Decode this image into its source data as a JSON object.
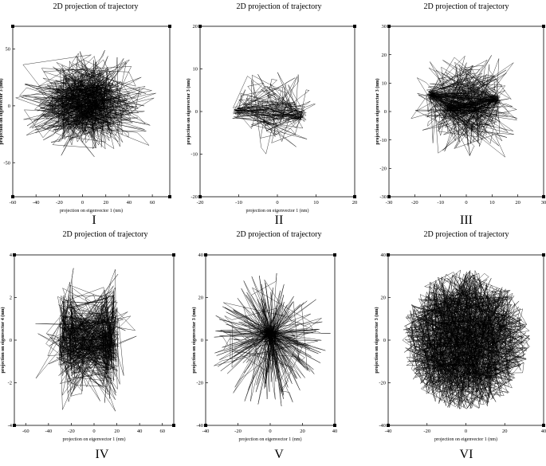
{
  "chart_data": [
    {
      "panel": "I",
      "type": "line",
      "title": "2D projection of trajectory",
      "xlabel": "projection on eigenvector 1 (nm)",
      "ylabel": "projection on eigenvector 3 (nm)",
      "xlim": [
        -60,
        75
      ],
      "ylim": [
        -80,
        70
      ],
      "xticks": [
        -60,
        -40,
        -20,
        0,
        20,
        40,
        60
      ],
      "yticks": [
        -50,
        0,
        50
      ],
      "pattern": "dense-radial",
      "n_points": 900,
      "spread": [
        70,
        55
      ],
      "center": [
        5,
        3
      ]
    },
    {
      "panel": "II",
      "type": "line",
      "title": "2D projection of trajectory",
      "xlabel": "projection on eigenvector 1 (nm)",
      "ylabel": "projection on eigenvector 3 (nm)",
      "xlim": [
        -20,
        20
      ],
      "ylim": [
        -20,
        20
      ],
      "xticks": [
        -20,
        -10,
        0,
        10,
        20
      ],
      "yticks": [
        -20,
        -10,
        0,
        10,
        20
      ],
      "pattern": "clusters",
      "n_points": 260,
      "spread": [
        14,
        12
      ],
      "center": [
        0,
        0
      ],
      "clusters": [
        [
          -11,
          0
        ],
        [
          6,
          -1
        ]
      ]
    },
    {
      "panel": "III",
      "type": "line",
      "title": "2D projection of trajectory",
      "xlabel": "",
      "ylabel": "projection on eigenvector 3 (nm)",
      "xlim": [
        -30,
        30
      ],
      "ylim": [
        -30,
        30
      ],
      "xticks": [
        -30,
        -20,
        -10,
        0,
        10,
        20,
        30
      ],
      "yticks": [
        -30,
        -20,
        -10,
        0,
        10,
        20,
        30
      ],
      "pattern": "clusters",
      "n_points": 700,
      "spread": [
        26,
        22
      ],
      "center": [
        0,
        2
      ],
      "clusters": [
        [
          -7,
          1
        ],
        [
          4,
          1
        ],
        [
          -14,
          6
        ],
        [
          12,
          4
        ]
      ]
    },
    {
      "panel": "IV",
      "type": "line",
      "title": "2D projection of trajectory",
      "xlabel": "projection on eigenvector 1 (nm)",
      "ylabel": "projection on eigenvector 4 (nm)",
      "xlim": [
        -70,
        70
      ],
      "ylim": [
        -4,
        4
      ],
      "xticks": [
        -60,
        -40,
        -20,
        0,
        20,
        40,
        60
      ],
      "yticks": [
        -4,
        -2,
        0,
        2,
        4
      ],
      "pattern": "vertical-bands",
      "n_points": 800,
      "spread": [
        55,
        3.8
      ],
      "center": [
        -5,
        0
      ],
      "bands": [
        -28,
        -20,
        10,
        18
      ]
    },
    {
      "panel": "V",
      "type": "line",
      "title": "2D projection of trajectory",
      "xlabel": "projection on eigenvector 1 (nm)",
      "ylabel": "projection on eigenvector 3 (nm)",
      "xlim": [
        -40,
        40
      ],
      "ylim": [
        -40,
        40
      ],
      "xticks": [
        -40,
        -20,
        0,
        20,
        40
      ],
      "yticks": [
        -40,
        -20,
        0,
        20,
        40
      ],
      "pattern": "starburst",
      "n_points": 500,
      "spread": [
        38,
        32
      ],
      "center": [
        0,
        0
      ]
    },
    {
      "panel": "VI",
      "type": "line",
      "title": "2D projection of trajectory",
      "xlabel": "projection on eigenvector 1 (nm)",
      "ylabel": "projection on eigenvector 3 (nm)",
      "xlim": [
        -40,
        40
      ],
      "ylim": [
        -40,
        40
      ],
      "xticks": [
        -40,
        -20,
        0,
        20,
        40
      ],
      "yticks": [
        -40,
        -20,
        0,
        20,
        40
      ],
      "pattern": "disc",
      "n_points": 1400,
      "spread": [
        33,
        33
      ],
      "center": [
        0,
        0
      ]
    }
  ]
}
